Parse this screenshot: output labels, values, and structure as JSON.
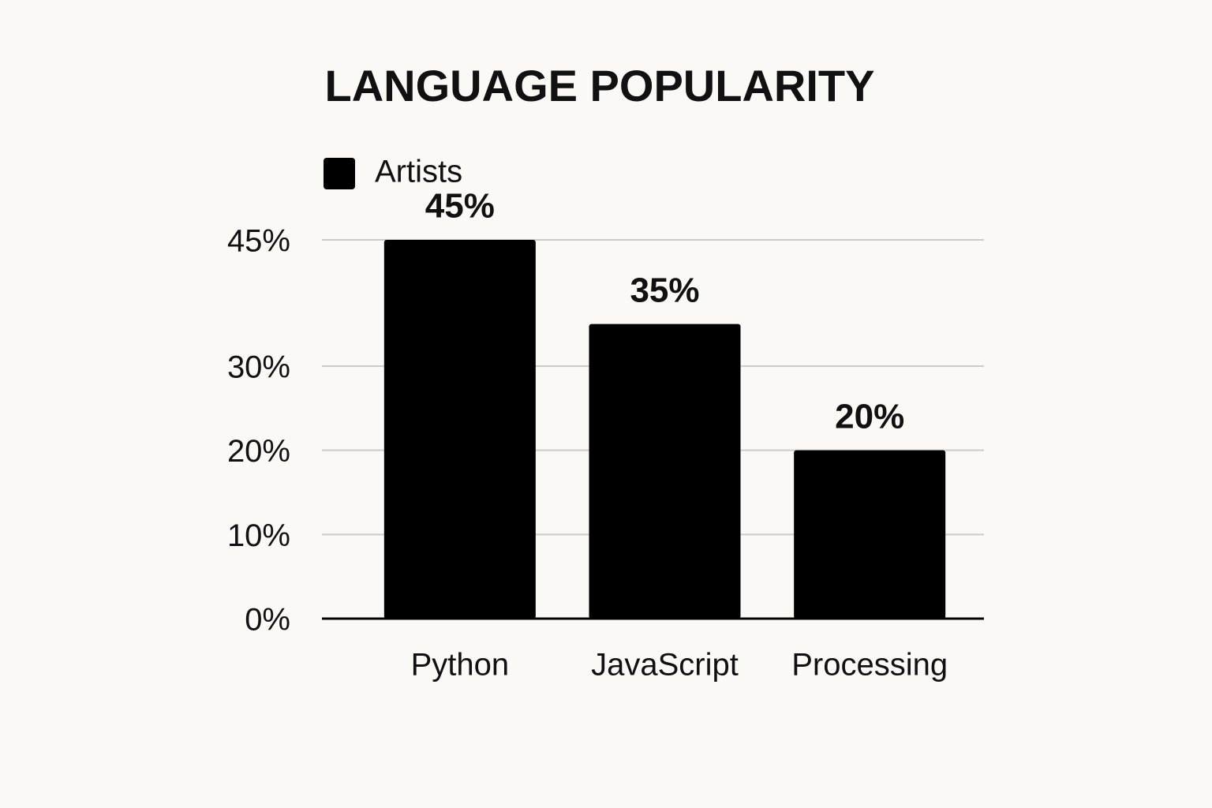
{
  "chart_data": {
    "type": "bar",
    "title": "LANGUAGE POPULARITY",
    "categories": [
      "Python",
      "JavaScript",
      "Processing"
    ],
    "series": [
      {
        "name": "Artists",
        "color": "#000000",
        "values": [
          45,
          35,
          20
        ],
        "value_labels": [
          "45%",
          "35%",
          "20%"
        ]
      }
    ],
    "ylim": [
      0,
      45
    ],
    "yticks": [
      {
        "value": 0,
        "label": "0%"
      },
      {
        "value": 10,
        "label": "10%"
      },
      {
        "value": 20,
        "label": "20%"
      },
      {
        "value": 30,
        "label": "30%"
      },
      {
        "value": 45,
        "label": "45%"
      }
    ],
    "grid": true,
    "legend": "top-left"
  }
}
